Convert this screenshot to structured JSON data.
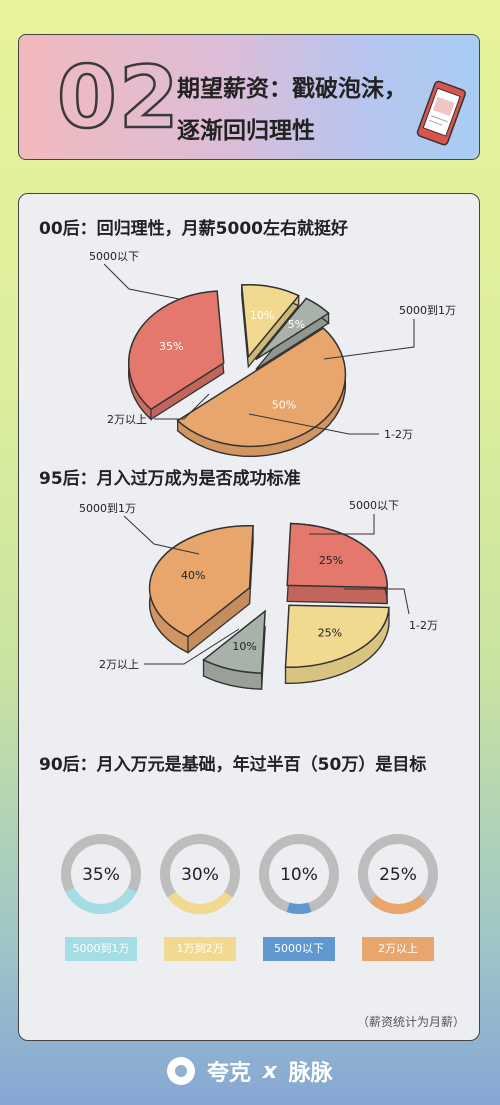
{
  "header": {
    "number": "02",
    "title_line1": "期望薪资：戳破泡沫，",
    "title_line2": "逐渐回归理性"
  },
  "colors": {
    "orange": "#e8a66c",
    "salmon": "#e4786c",
    "yellow": "#f1d98f",
    "gray": "#a9b2aa",
    "teal": "#a5dde4",
    "blue": "#5f98d0",
    "tag_orange": "#e8a66c"
  },
  "chart_data": [
    {
      "type": "pie",
      "title": "00后：回归理性，月薪5000左右就挺好",
      "slices": [
        {
          "label": "5000以下",
          "value": 50,
          "display": "50%"
        },
        {
          "label": "5000到1万",
          "value": 35,
          "display": "35%"
        },
        {
          "label": "1-2万",
          "value": 10,
          "display": "10%"
        },
        {
          "label": "2万以上",
          "value": 5,
          "display": "5%"
        }
      ]
    },
    {
      "type": "pie",
      "title": "95后：月入过万成为是否成功标准",
      "slices": [
        {
          "label": "5000以下",
          "value": 25,
          "display": "25%"
        },
        {
          "label": "1-2万",
          "value": 25,
          "display": "25%"
        },
        {
          "label": "2万以上",
          "value": 10,
          "display": "10%"
        },
        {
          "label": "5000到1万",
          "value": 40,
          "display": "40%"
        }
      ]
    },
    {
      "type": "donut",
      "title": "90后：月入万元是基础，年过半百（50万）是目标",
      "items": [
        {
          "label": "5000到1万",
          "value": 35,
          "display": "35%",
          "color": "#a5dde4"
        },
        {
          "label": "1万到2万",
          "value": 30,
          "display": "30%",
          "color": "#f1d98f"
        },
        {
          "label": "5000以下",
          "value": 10,
          "display": "10%",
          "color": "#5f98d0"
        },
        {
          "label": "2万以上",
          "value": 25,
          "display": "25%",
          "color": "#e8a66c"
        }
      ]
    }
  ],
  "note": "（薪资统计为月薪）",
  "footer": {
    "brand1": "夸克",
    "sep": "x",
    "brand2": "脉脉"
  }
}
